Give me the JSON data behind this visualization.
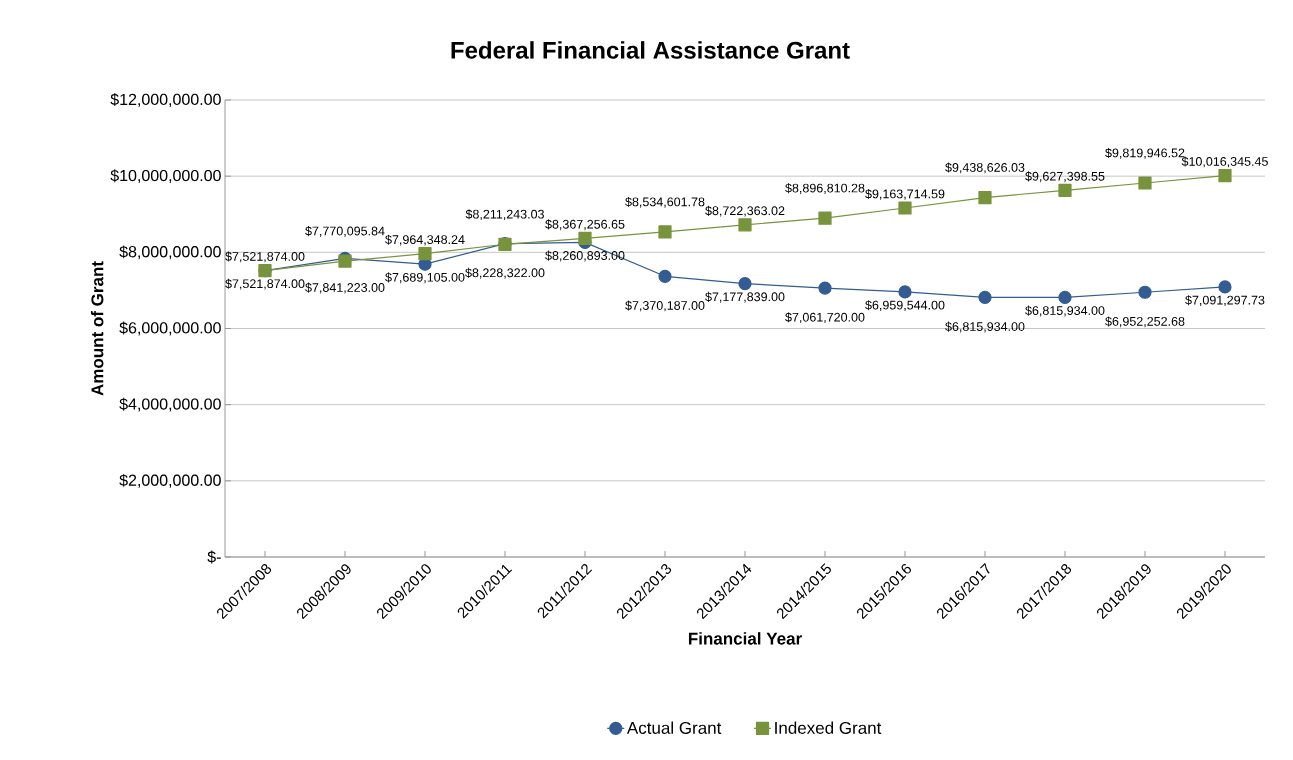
{
  "chart_data": {
    "type": "line",
    "title": "Federal Financial Assistance Grant",
    "xlabel": "Financial Year",
    "ylabel": "Amount of Grant",
    "categories": [
      "2007/2008",
      "2008/2009",
      "2009/2010",
      "2010/2011",
      "2011/2012",
      "2012/2013",
      "2013/2014",
      "2014/2015",
      "2015/2016",
      "2016/2017",
      "2017/2018",
      "2018/2019",
      "2019/2020"
    ],
    "series": [
      {
        "name": "Actual Grant",
        "color": "#335c92",
        "marker": "circle",
        "values": [
          7521874.0,
          7841223.0,
          7689105.0,
          8228322.0,
          8260893.0,
          7370187.0,
          7177839.0,
          7061720.0,
          6959544.0,
          6815934.0,
          6815934.0,
          6952252.68,
          7091297.73
        ],
        "value_labels": [
          "$7,521,874.00",
          "$7,841,223.00",
          "$7,689,105.00",
          "$8,228,322.00",
          "$8,260,893.00",
          "$7,370,187.00",
          "$7,177,839.00",
          "$7,061,720.00",
          "$6,959,544.00",
          "$6,815,934.00",
          "$6,815,934.00",
          "$6,952,252.68",
          "$7,091,297.73"
        ]
      },
      {
        "name": "Indexed Grant",
        "color": "#77933c",
        "marker": "square",
        "values": [
          7521874.0,
          7770095.84,
          7964348.24,
          8211243.03,
          8367256.65,
          8534601.78,
          8722363.02,
          8896810.28,
          9163714.59,
          9438626.03,
          9627398.55,
          9819946.52,
          10016345.45
        ],
        "value_labels": [
          "$7,521,874.00",
          "$7,770,095.84",
          "$7,964,348.24",
          "$8,211,243.03",
          "$8,367,256.65",
          "$8,534,601.78",
          "$8,722,363.02",
          "$8,896,810.28",
          "$9,163,714.59",
          "$9,438,626.03",
          "$9,627,398.55",
          "$9,819,946.52",
          "$10,016,345.45"
        ]
      }
    ],
    "ylim": [
      0,
      12000000
    ],
    "yticks": [
      {
        "value": 0,
        "label": "$-"
      },
      {
        "value": 2000000,
        "label": "$2,000,000.00"
      },
      {
        "value": 4000000,
        "label": "$4,000,000.00"
      },
      {
        "value": 6000000,
        "label": "$6,000,000.00"
      },
      {
        "value": 8000000,
        "label": "$8,000,000.00"
      },
      {
        "value": 10000000,
        "label": "$10,000,000.00"
      },
      {
        "value": 12000000,
        "label": "$12,000,000.00"
      }
    ],
    "grid": "y",
    "legend": "bottom",
    "line_style": "solid"
  }
}
